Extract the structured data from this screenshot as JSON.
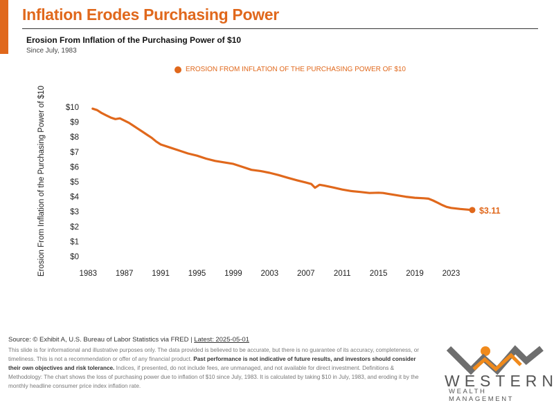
{
  "header": {
    "title": "Inflation Erodes Purchasing Power",
    "subtitle": "Erosion From Inflation of the Purchasing Power of $10",
    "since": "Since July, 1983"
  },
  "chart_data": {
    "type": "line",
    "ylabel": "Erosion From Inflation of the Purchasing Power of $10",
    "xlabel": "",
    "ylim": [
      0,
      10
    ],
    "xlim": [
      1982.6,
      2026.4
    ],
    "y_ticks": [
      "$0",
      "$1",
      "$2",
      "$3",
      "$4",
      "$5",
      "$6",
      "$7",
      "$8",
      "$9",
      "$10"
    ],
    "x_ticks": [
      "1983",
      "1987",
      "1991",
      "1995",
      "1999",
      "2003",
      "2007",
      "2011",
      "2015",
      "2019",
      "2023"
    ],
    "grid": false,
    "legend_position": "top",
    "end_label": "$3.11",
    "series": [
      {
        "name": "EROSION FROM INFLATION OF THE PURCHASING POWER OF $10",
        "color": "#e0681c",
        "x": [
          1983.5,
          1984,
          1984.5,
          1985,
          1985.5,
          1986,
          1986.5,
          1987,
          1987.5,
          1988,
          1988.5,
          1989,
          1989.5,
          1990,
          1990.5,
          1991,
          1992,
          1993,
          1994,
          1995,
          1996,
          1997,
          1998,
          1999,
          2000,
          2001,
          2002,
          2003,
          2004,
          2005,
          2006,
          2007,
          2007.6,
          2008,
          2008.5,
          2009,
          2010,
          2011,
          2012,
          2013,
          2014,
          2015,
          2015.5,
          2016,
          2017,
          2018,
          2019,
          2020,
          2020.5,
          2021,
          2021.5,
          2022,
          2022.5,
          2023,
          2024,
          2025.33
        ],
        "values": [
          9.9,
          9.8,
          9.6,
          9.45,
          9.3,
          9.2,
          9.25,
          9.1,
          8.95,
          8.75,
          8.55,
          8.35,
          8.15,
          7.95,
          7.7,
          7.5,
          7.3,
          7.1,
          6.9,
          6.75,
          6.55,
          6.4,
          6.3,
          6.2,
          6.0,
          5.8,
          5.72,
          5.6,
          5.45,
          5.27,
          5.1,
          4.95,
          4.85,
          4.6,
          4.8,
          4.75,
          4.62,
          4.48,
          4.38,
          4.32,
          4.25,
          4.27,
          4.25,
          4.2,
          4.1,
          4.0,
          3.93,
          3.9,
          3.87,
          3.75,
          3.6,
          3.45,
          3.32,
          3.25,
          3.18,
          3.11
        ]
      }
    ]
  },
  "footer": {
    "source_prefix": "Source: © Exhibit A, U.S. Bureau of Labor Statistics via FRED | ",
    "source_latest": "Latest: 2025-05-01",
    "disclaimer_1": "This slide is for informational and illustrative purposes only. The data provided is believed to be accurate, but there is no guarantee of its accuracy, completeness, or timeliness. This is not a recommendation or offer of any financial product. ",
    "disclaimer_bold": "Past performance is not indicative of future results, and investors should consider their own objectives and risk tolerance.",
    "disclaimer_2": " Indices, if presented, do not include fees, are unmanaged, and not available for direct investment. Definitions & Methodology: The chart shows the loss of purchasing power due to inflation of $10 since July, 1983. It is calculated by taking $10 in July, 1983, and eroding it by the monthly headline consumer price index inflation rate."
  },
  "logo": {
    "name": "WESTERN",
    "tagline": "WEALTH MANAGEMENT",
    "colors": {
      "orange": "#f08a1c",
      "gray": "#6e6e6e"
    }
  }
}
